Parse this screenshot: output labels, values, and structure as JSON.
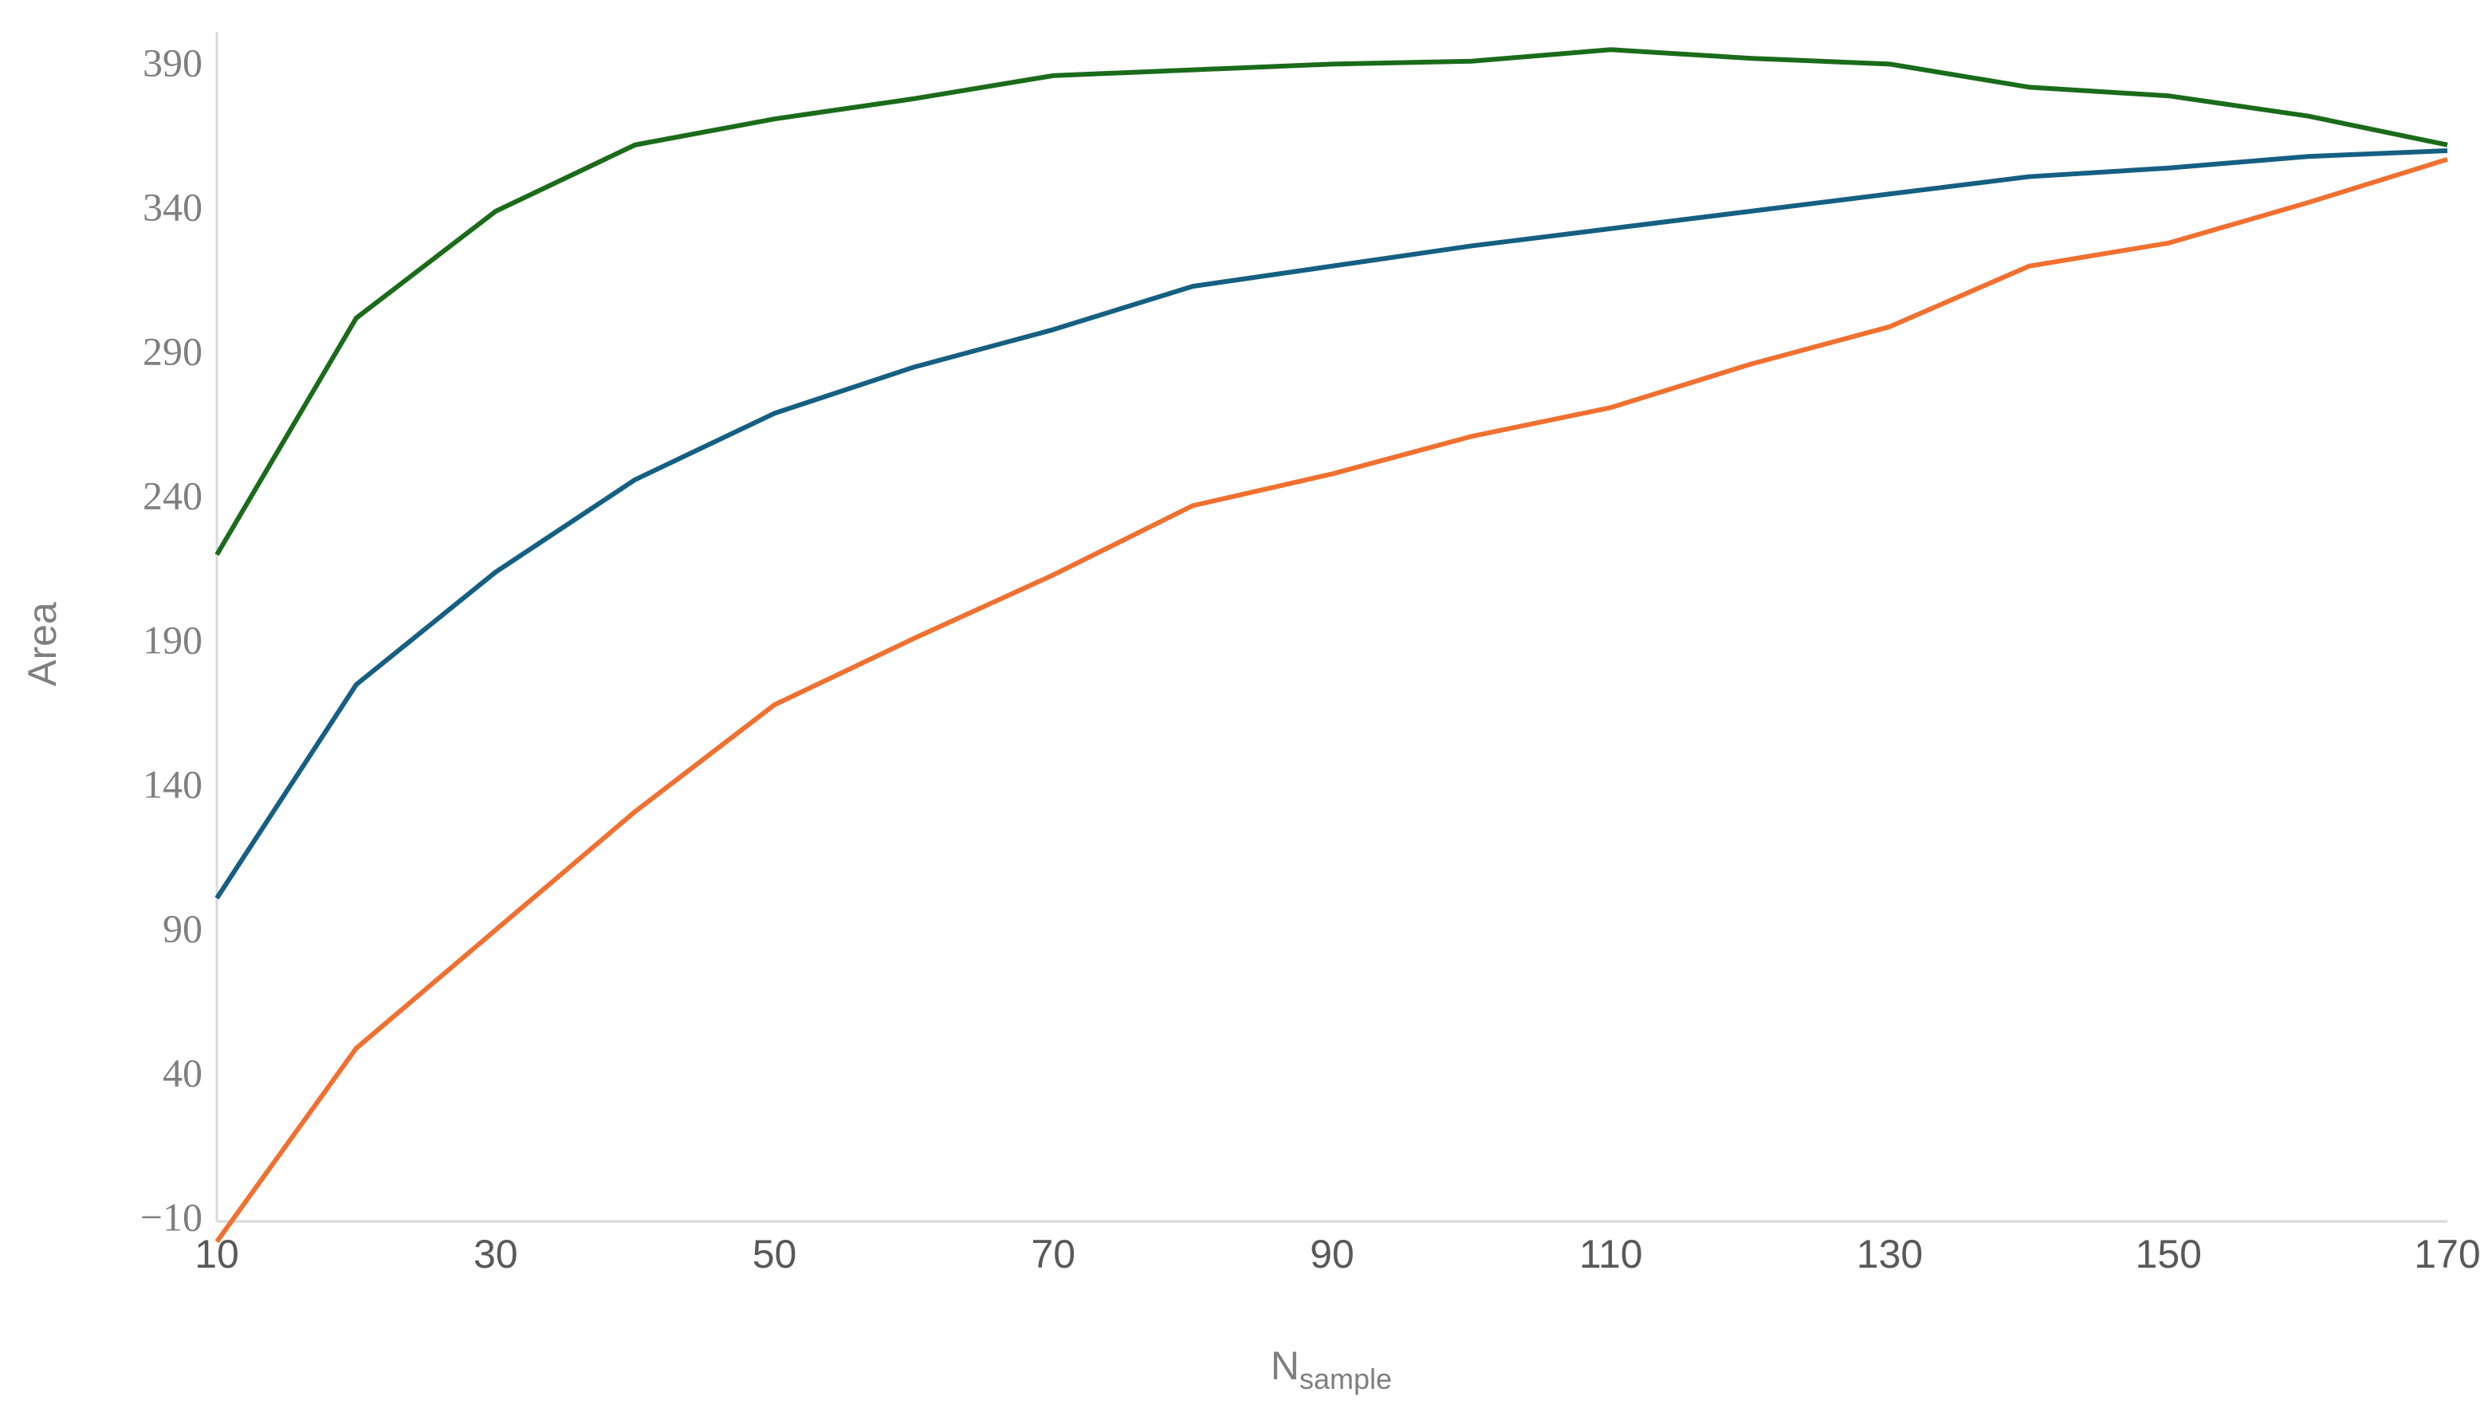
{
  "chart_data": {
    "type": "line",
    "x": [
      10,
      20,
      30,
      40,
      50,
      60,
      70,
      80,
      90,
      100,
      110,
      120,
      130,
      140,
      150,
      160,
      170
    ],
    "series": [
      {
        "color": "#1a6b1a",
        "values": [
          221,
          303,
          340,
          363,
          372,
          379,
          387,
          389,
          391,
          392,
          396,
          393,
          391,
          383,
          380,
          373,
          363
        ]
      },
      {
        "color": "#155f82",
        "values": [
          102,
          176,
          215,
          247,
          270,
          286,
          299,
          314,
          321,
          328,
          334,
          340,
          346,
          352,
          355,
          359,
          361
        ]
      },
      {
        "color": "#f07030",
        "values": [
          -17,
          50,
          91,
          132,
          169,
          192,
          214,
          238,
          249,
          262,
          272,
          287,
          300,
          321,
          329,
          343,
          358
        ]
      }
    ],
    "xlim": [
      10,
      170
    ],
    "xticks": [
      10,
      30,
      50,
      70,
      90,
      110,
      130,
      150,
      170
    ],
    "ylim": [
      -10,
      390
    ],
    "yticks": [
      {
        "value": -10,
        "label": "−10"
      },
      40,
      90,
      140,
      190,
      240,
      290,
      340,
      390
    ],
    "ylabel": "Area",
    "xlabel": "N",
    "xlabel_subscript": "sample",
    "grid": false
  }
}
